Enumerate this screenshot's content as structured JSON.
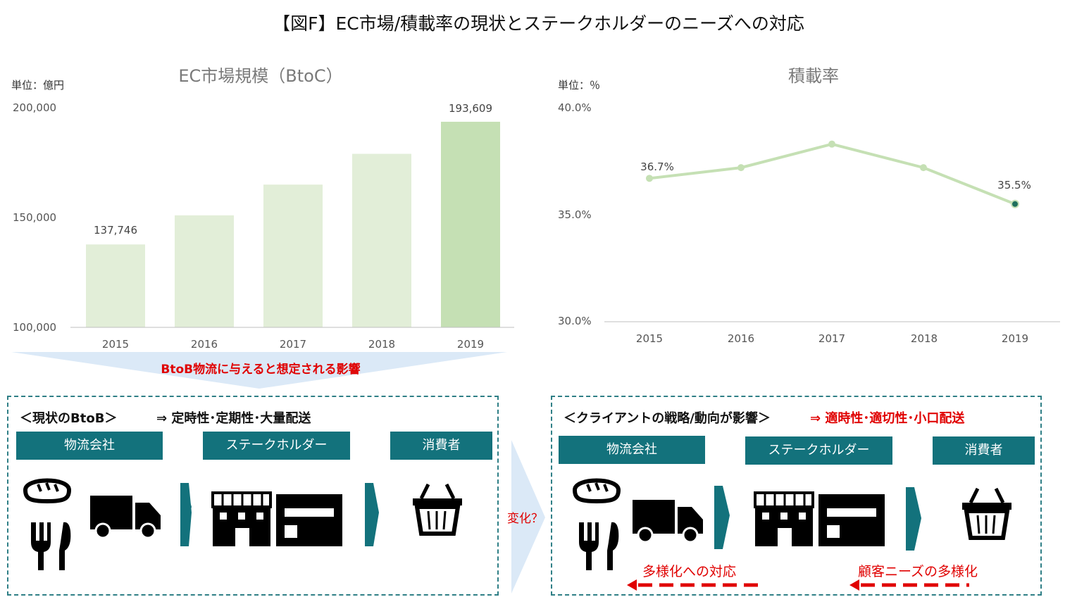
{
  "title": "【図F】EC市場/積載率の現状とステークホルダーのニーズへの対応",
  "left_chart": {
    "title": "EC市場規模（BtoC）",
    "unit": "単位：億円",
    "y_ticks": [
      "200,000",
      "150,000",
      "100,000"
    ],
    "x_ticks": [
      "2015",
      "2016",
      "2017",
      "2018",
      "2019"
    ],
    "data_labels": [
      "137,746",
      "193,609"
    ]
  },
  "right_chart": {
    "title": "積載率",
    "unit": "単位：％",
    "y_ticks": [
      "40.0%",
      "35.0%",
      "30.0%"
    ],
    "x_ticks": [
      "2015",
      "2016",
      "2017",
      "2018",
      "2019"
    ],
    "data_labels": [
      "36.7%",
      "35.5%"
    ]
  },
  "chart_data": [
    {
      "type": "bar",
      "title": "EC市場規模（BtoC）",
      "ylabel": "単位：億円",
      "categories": [
        "2015",
        "2016",
        "2017",
        "2018",
        "2019"
      ],
      "values": [
        137746,
        151000,
        165000,
        179000,
        193609
      ],
      "ylim": [
        100000,
        200000
      ],
      "colors": [
        "#e2eed8",
        "#e2eed8",
        "#e2eed8",
        "#e2eed8",
        "#c5e0b4"
      ]
    },
    {
      "type": "line",
      "title": "積載率",
      "ylabel": "単位：％",
      "x": [
        "2015",
        "2016",
        "2017",
        "2018",
        "2019"
      ],
      "values": [
        36.7,
        37.2,
        38.3,
        37.2,
        35.5
      ],
      "ylim": [
        30,
        40
      ],
      "color": "#c5e0b4"
    }
  ],
  "impact_label": "BtoB物流に与えると想定される影響",
  "change_label": "変化？",
  "left_box": {
    "heading": "＜現状のBtoB＞",
    "arrow_text": "⇒ 定時性･定期性･大量配送",
    "actors": [
      "物流会社",
      "ステークホルダー",
      "消費者"
    ]
  },
  "right_box": {
    "heading": "＜クライアントの戦略/動向が影響＞",
    "arrow_text": "⇒ 適時性･適切性･小口配送",
    "actors": [
      "物流会社",
      "ステークホルダー",
      "消費者"
    ],
    "response_label": "多様化への対応",
    "needs_label": "顧客ニーズの多様化"
  },
  "colors": {
    "teal": "#13727c",
    "bar": "#e2eed8",
    "bar_highlight": "#c5e0b4",
    "red": "#e00000"
  }
}
